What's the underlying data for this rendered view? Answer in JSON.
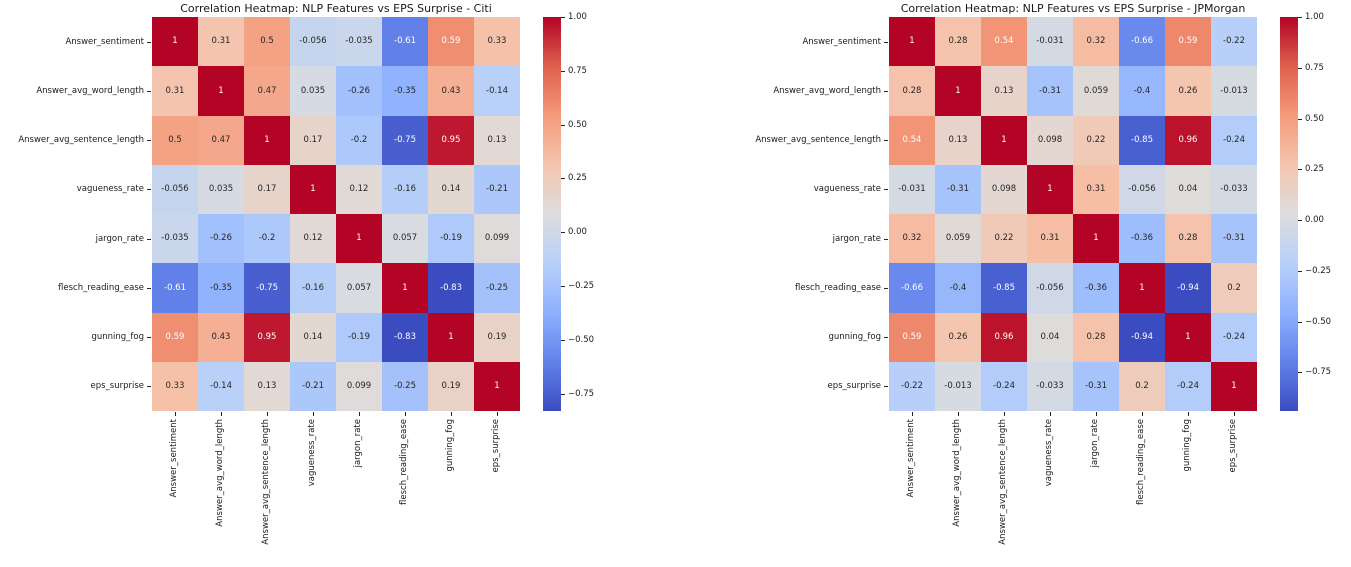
{
  "colors": {
    "background": "#ffffff",
    "axis_text": "#1a1a1a",
    "annotation_dark": "#262626",
    "annotation_light": "#ffffff",
    "coolwarm_stops": [
      {
        "t": 0.0,
        "hex": "#3B4CC0"
      },
      {
        "t": 0.125,
        "hex": "#6282EA"
      },
      {
        "t": 0.25,
        "hex": "#8DB0FE"
      },
      {
        "t": 0.375,
        "hex": "#B8D0F9"
      },
      {
        "t": 0.5,
        "hex": "#DDDDDD"
      },
      {
        "t": 0.625,
        "hex": "#F5C4AD"
      },
      {
        "t": 0.75,
        "hex": "#F49A7B"
      },
      {
        "t": 0.875,
        "hex": "#DE604D"
      },
      {
        "t": 1.0,
        "hex": "#B40426"
      }
    ]
  },
  "chart_data": [
    {
      "type": "heatmap",
      "title": "Correlation Heatmap: NLP Features vs EPS Surprise - Citi",
      "colormap": "coolwarm",
      "grid": false,
      "legend_position": "right-colorbar",
      "vmin": -0.83,
      "vmax": 1.0,
      "categories": [
        "Answer_sentiment",
        "Answer_avg_word_length",
        "Answer_avg_sentence_length",
        "vagueness_rate",
        "jargon_rate",
        "flesch_reading_ease",
        "gunning_fog",
        "eps_surprise"
      ],
      "matrix": [
        [
          "1",
          "0.31",
          "0.5",
          "-0.056",
          "-0.035",
          "-0.61",
          "0.59",
          "0.33"
        ],
        [
          "0.31",
          "1",
          "0.47",
          "0.035",
          "-0.26",
          "-0.35",
          "0.43",
          "-0.14"
        ],
        [
          "0.5",
          "0.47",
          "1",
          "0.17",
          "-0.2",
          "-0.75",
          "0.95",
          "0.13"
        ],
        [
          "-0.056",
          "0.035",
          "0.17",
          "1",
          "0.12",
          "-0.16",
          "0.14",
          "-0.21"
        ],
        [
          "-0.035",
          "-0.26",
          "-0.2",
          "0.12",
          "1",
          "0.057",
          "-0.19",
          "0.099"
        ],
        [
          "-0.61",
          "-0.35",
          "-0.75",
          "-0.16",
          "0.057",
          "1",
          "-0.83",
          "-0.25"
        ],
        [
          "0.59",
          "0.43",
          "0.95",
          "0.14",
          "-0.19",
          "-0.83",
          "1",
          "0.19"
        ],
        [
          "0.33",
          "-0.14",
          "0.13",
          "-0.21",
          "0.099",
          "-0.25",
          "0.19",
          "1"
        ]
      ],
      "colorbar_ticks": [
        {
          "value": 1.0,
          "label": "1.00"
        },
        {
          "value": 0.75,
          "label": "0.75"
        },
        {
          "value": 0.5,
          "label": "0.50"
        },
        {
          "value": 0.25,
          "label": "0.25"
        },
        {
          "value": 0.0,
          "label": "0.00"
        },
        {
          "value": -0.25,
          "label": "−0.25"
        },
        {
          "value": -0.5,
          "label": "−0.50"
        },
        {
          "value": -0.75,
          "label": "−0.75"
        }
      ]
    },
    {
      "type": "heatmap",
      "title": "Correlation Heatmap: NLP Features vs EPS Surprise - JPMorgan",
      "colormap": "coolwarm",
      "grid": false,
      "legend_position": "right-colorbar",
      "vmin": -0.94,
      "vmax": 1.0,
      "categories": [
        "Answer_sentiment",
        "Answer_avg_word_length",
        "Answer_avg_sentence_length",
        "vagueness_rate",
        "jargon_rate",
        "flesch_reading_ease",
        "gunning_fog",
        "eps_surprise"
      ],
      "matrix": [
        [
          "1",
          "0.28",
          "0.54",
          "-0.031",
          "0.32",
          "-0.66",
          "0.59",
          "-0.22"
        ],
        [
          "0.28",
          "1",
          "0.13",
          "-0.31",
          "0.059",
          "-0.4",
          "0.26",
          "-0.013"
        ],
        [
          "0.54",
          "0.13",
          "1",
          "0.098",
          "0.22",
          "-0.85",
          "0.96",
          "-0.24"
        ],
        [
          "-0.031",
          "-0.31",
          "0.098",
          "1",
          "0.31",
          "-0.056",
          "0.04",
          "-0.033"
        ],
        [
          "0.32",
          "0.059",
          "0.22",
          "0.31",
          "1",
          "-0.36",
          "0.28",
          "-0.31"
        ],
        [
          "-0.66",
          "-0.4",
          "-0.85",
          "-0.056",
          "-0.36",
          "1",
          "-0.94",
          "0.2"
        ],
        [
          "0.59",
          "0.26",
          "0.96",
          "0.04",
          "0.28",
          "-0.94",
          "1",
          "-0.24"
        ],
        [
          "-0.22",
          "-0.013",
          "-0.24",
          "-0.033",
          "-0.31",
          "0.2",
          "-0.24",
          "1"
        ]
      ],
      "colorbar_ticks": [
        {
          "value": 1.0,
          "label": "1.00"
        },
        {
          "value": 0.75,
          "label": "0.75"
        },
        {
          "value": 0.5,
          "label": "0.50"
        },
        {
          "value": 0.25,
          "label": "0.25"
        },
        {
          "value": 0.0,
          "label": "0.00"
        },
        {
          "value": -0.25,
          "label": "−0.25"
        },
        {
          "value": -0.5,
          "label": "−0.50"
        },
        {
          "value": -0.75,
          "label": "−0.75"
        }
      ]
    }
  ]
}
